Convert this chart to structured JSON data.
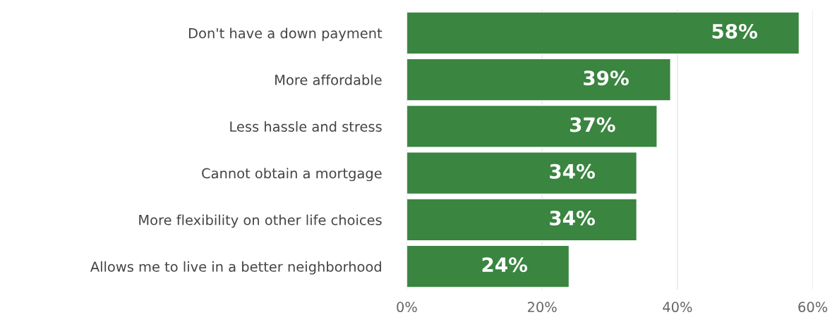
{
  "chart_data": {
    "type": "bar",
    "orientation": "horizontal",
    "categories": [
      "Don't have a down payment",
      "More affordable",
      "Less hassle and stress",
      "Cannot obtain a mortgage",
      "More flexibility on other life choices",
      "Allows me to live in a better neighborhood"
    ],
    "values": [
      58,
      39,
      37,
      34,
      34,
      24
    ],
    "color": "#3a8540",
    "xlim": [
      0,
      60
    ],
    "xticks": [
      {
        "value": 0,
        "label": "0%"
      },
      {
        "value": 20,
        "label": "20%"
      },
      {
        "value": 40,
        "label": "40%"
      },
      {
        "value": 60,
        "label": "60%"
      }
    ],
    "value_labels": [
      "58%",
      "39%",
      "37%",
      "34%",
      "34%",
      "24%"
    ],
    "grid": "x",
    "legend": false
  }
}
